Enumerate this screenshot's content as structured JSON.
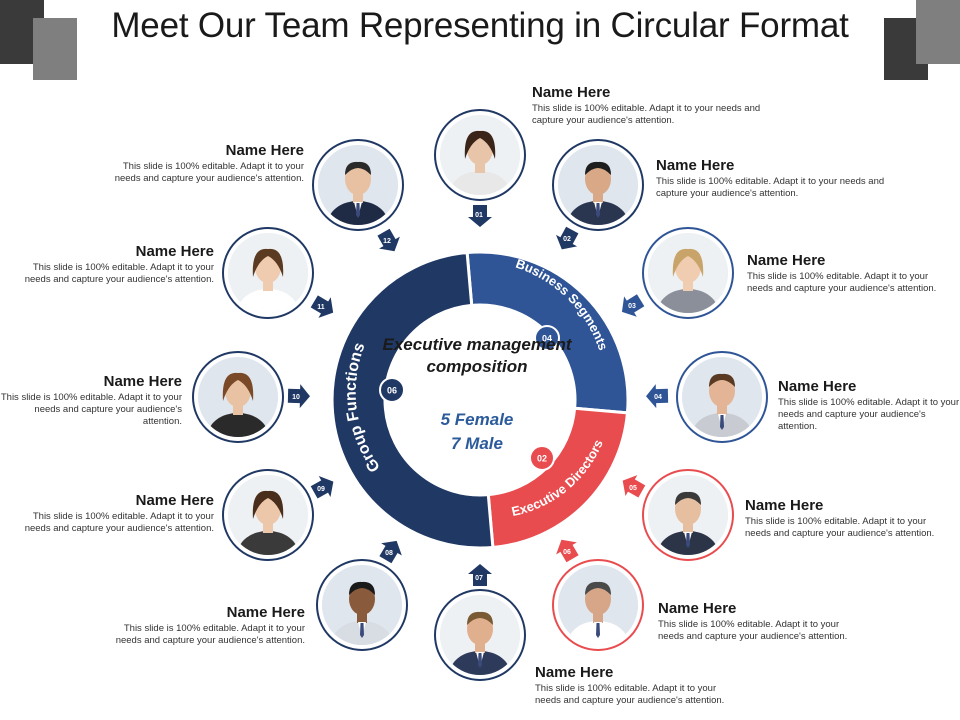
{
  "title": "Meet Our Team Representing in Circular Format",
  "colors": {
    "navy": "#203864",
    "blue": "#2f5597",
    "red": "#e84c4f",
    "gray": "#7f7f7f",
    "dark": "#3a3a3a"
  },
  "center": {
    "title": "Executive management composition",
    "female": "5 Female",
    "male": "7 Male"
  },
  "segments": [
    {
      "label": "Business Segments",
      "number": "04",
      "color": "#2f5597"
    },
    {
      "label": "Executive Directors",
      "number": "02",
      "color": "#e84c4f"
    },
    {
      "label": "Group Functions",
      "number": "06",
      "color": "#203864"
    }
  ],
  "members": [
    {
      "name": "Name Here",
      "desc": "This slide is 100% editable.  Adapt it to your needs and capture your audience's attention.",
      "num": "01",
      "icon": "woman-portrait-icon"
    },
    {
      "name": "Name Here",
      "desc": "This slide is 100% editable.  Adapt it to your needs and capture your audience's attention.",
      "num": "02",
      "icon": "man-portrait-icon"
    },
    {
      "name": "Name Here",
      "desc": "This slide is 100% editable. Adapt it to your needs and capture your audience's attention.",
      "num": "03",
      "icon": "woman-portrait-icon"
    },
    {
      "name": "Name Here",
      "desc": "This slide is 100% editable. Adapt it to your needs and capture your audience's attention.",
      "num": "04",
      "icon": "man-portrait-icon"
    },
    {
      "name": "Name Here",
      "desc": "This slide is 100% editable. Adapt it to your needs and capture your audience's attention.",
      "num": "05",
      "icon": "man-portrait-icon"
    },
    {
      "name": "Name Here",
      "desc": "This slide is 100% editable. Adapt it to your needs and capture your audience's attention.",
      "num": "06",
      "icon": "man-portrait-icon"
    },
    {
      "name": "Name Here",
      "desc": "This slide is 100% editable. Adapt it to your needs and capture your audience's attention.",
      "num": "07",
      "icon": "man-portrait-icon"
    },
    {
      "name": "Name Here",
      "desc": "This slide is 100% editable. Adapt it to your needs and capture your audience's attention.",
      "num": "08",
      "icon": "man-portrait-icon"
    },
    {
      "name": "Name Here",
      "desc": "This slide is 100% editable. Adapt it to your needs and capture your audience's attention.",
      "num": "09",
      "icon": "woman-portrait-icon"
    },
    {
      "name": "Name Here",
      "desc": "This slide is 100% editable. Adapt it to your needs and capture your audience's attention.",
      "num": "10",
      "icon": "woman-portrait-icon"
    },
    {
      "name": "Name Here",
      "desc": "This slide is 100% editable. Adapt it to your needs and capture your audience's attention.",
      "num": "11",
      "icon": "woman-portrait-icon"
    },
    {
      "name": "Name Here",
      "desc": "This slide is 100% editable. Adapt it to your needs and capture your audience's attention.",
      "num": "12",
      "icon": "man-portrait-icon"
    }
  ]
}
